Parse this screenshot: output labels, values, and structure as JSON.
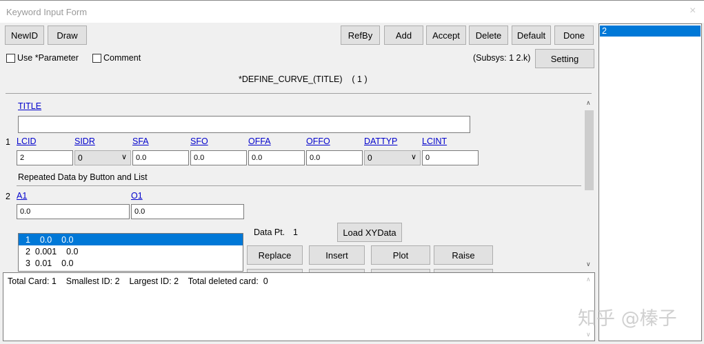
{
  "window": {
    "title": "Keyword Input Form",
    "close": "×"
  },
  "toolbar": {
    "newid": "NewID",
    "draw": "Draw",
    "refby": "RefBy",
    "add": "Add",
    "accept": "Accept",
    "delete": "Delete",
    "default": "Default",
    "done": "Done"
  },
  "options": {
    "use_parameter": "Use *Parameter",
    "comment": "Comment",
    "subsys": "(Subsys: 1 2.k)",
    "setting": "Setting"
  },
  "keyword": {
    "header": "*DEFINE_CURVE_(TITLE)    ( 1 )"
  },
  "card0": {
    "title_label": "TITLE",
    "title_value": ""
  },
  "card1": {
    "num": "1",
    "fields": [
      {
        "label": "LCID",
        "value": "2"
      },
      {
        "label": "SIDR",
        "value": "0"
      },
      {
        "label": "SFA",
        "value": "0.0"
      },
      {
        "label": "SFO",
        "value": "0.0"
      },
      {
        "label": "OFFA",
        "value": "0.0"
      },
      {
        "label": "OFFO",
        "value": "0.0"
      },
      {
        "label": "DATTYP",
        "value": "0"
      },
      {
        "label": "LCINT",
        "value": "0"
      }
    ]
  },
  "repeated": {
    "heading": "Repeated Data by Button and List"
  },
  "card2": {
    "num": "2",
    "a1_label": "A1",
    "a1_value": "0.0",
    "o1_label": "O1",
    "o1_value": "0.0"
  },
  "points": {
    "rows": [
      "1    0.0    0.0",
      "2  0.001    0.0",
      "3  0.01    0.0"
    ],
    "data_pt_label": "Data Pt.",
    "data_pt_value": "1",
    "load": "Load XYData",
    "replace": "Replace",
    "insert": "Insert",
    "plot": "Plot",
    "raise": "Raise"
  },
  "status": {
    "text": "Total Card: 1    Smallest ID: 2    Largest ID: 2    Total deleted card:  0"
  },
  "id_list": {
    "items": [
      "2"
    ]
  },
  "watermark": "知乎 @榛子",
  "colors": {
    "selection": "#0078d7",
    "link": "#0000cc"
  }
}
